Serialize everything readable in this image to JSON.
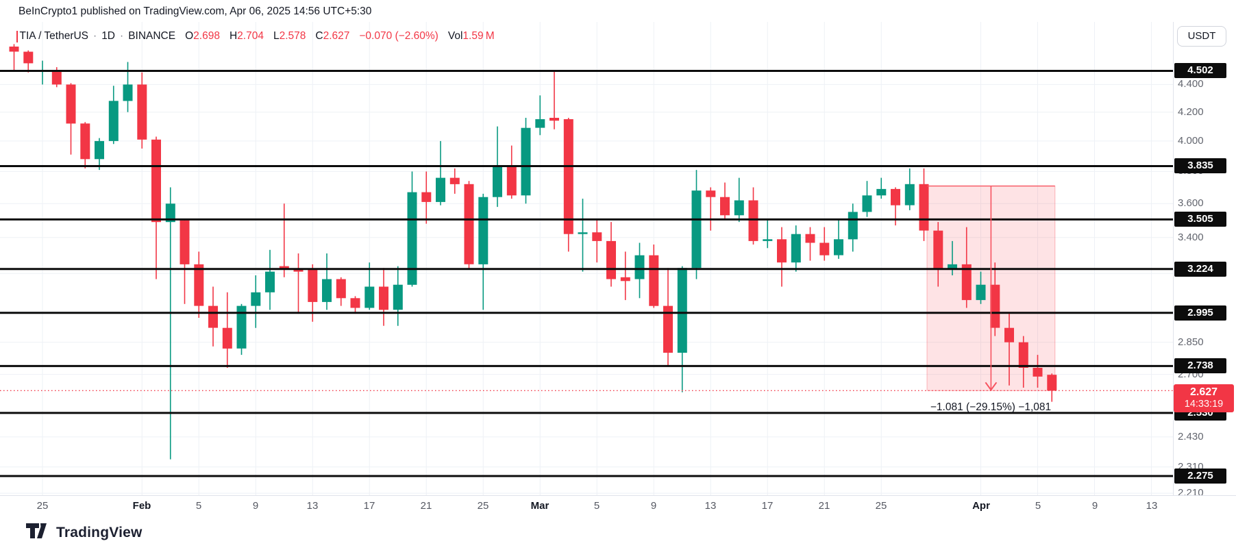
{
  "header": {
    "published_line": "BeInCrypto1 published on TradingView.com, Apr 06, 2025 14:56 UTC+5:30"
  },
  "legend": {
    "symbol": "TIA / TetherUS",
    "separator": "·",
    "interval": "1D",
    "exchange": "BINANCE",
    "o_label": "O",
    "o_value": "2.698",
    "h_label": "H",
    "h_value": "2.704",
    "l_label": "L",
    "l_value": "2.578",
    "c_label": "C",
    "c_value": "2.627",
    "change": "−0.070 (−2.60%)",
    "vol_label": "Vol",
    "vol_value": "1.59 M"
  },
  "price_axis": {
    "currency_button": "USDT",
    "levels": [
      {
        "price": 4.502,
        "label": "4.502"
      },
      {
        "price": 3.835,
        "label": "3.835"
      },
      {
        "price": 3.505,
        "label": "3.505"
      },
      {
        "price": 3.224,
        "label": "3.224"
      },
      {
        "price": 2.995,
        "label": "2.995"
      },
      {
        "price": 2.738,
        "label": "2.738"
      },
      {
        "price": 2.53,
        "label": "2.530"
      },
      {
        "price": 2.275,
        "label": "2.275"
      }
    ],
    "ticks": [
      {
        "price": 4.4,
        "label": "4.400"
      },
      {
        "price": 4.2,
        "label": "4.200"
      },
      {
        "price": 4.0,
        "label": "4.000"
      },
      {
        "price": 3.8,
        "label": "3.800"
      },
      {
        "price": 3.6,
        "label": "3.600"
      },
      {
        "price": 3.4,
        "label": "3.400"
      },
      {
        "price": 3.2,
        "label": "3.200"
      },
      {
        "price": 2.85,
        "label": "2.850"
      },
      {
        "price": 2.7,
        "label": "2.700"
      },
      {
        "price": 2.43,
        "label": "2.430"
      },
      {
        "price": 2.31,
        "label": "2.310"
      },
      {
        "price": 2.21,
        "label": "2.210"
      }
    ],
    "current": {
      "price": 2.627,
      "label": "2.627",
      "countdown": "14:33:19"
    }
  },
  "time_axis": {
    "labels": [
      {
        "text": "25",
        "day_index": 2,
        "month": false
      },
      {
        "text": "Feb",
        "day_index": 9,
        "month": true
      },
      {
        "text": "5",
        "day_index": 13,
        "month": false
      },
      {
        "text": "9",
        "day_index": 17,
        "month": false
      },
      {
        "text": "13",
        "day_index": 21,
        "month": false
      },
      {
        "text": "17",
        "day_index": 25,
        "month": false
      },
      {
        "text": "21",
        "day_index": 29,
        "month": false
      },
      {
        "text": "25",
        "day_index": 33,
        "month": false
      },
      {
        "text": "Mar",
        "day_index": 37,
        "month": true
      },
      {
        "text": "5",
        "day_index": 41,
        "month": false
      },
      {
        "text": "9",
        "day_index": 45,
        "month": false
      },
      {
        "text": "13",
        "day_index": 49,
        "month": false
      },
      {
        "text": "17",
        "day_index": 53,
        "month": false
      },
      {
        "text": "21",
        "day_index": 57,
        "month": false
      },
      {
        "text": "25",
        "day_index": 61,
        "month": false
      },
      {
        "text": "Apr",
        "day_index": 68,
        "month": true
      },
      {
        "text": "5",
        "day_index": 72,
        "month": false
      },
      {
        "text": "9",
        "day_index": 76,
        "month": false
      },
      {
        "text": "13",
        "day_index": 80,
        "month": false
      }
    ]
  },
  "measure_tool": {
    "label": "−1.081 (−29.15%) −1,081",
    "from_price": 3.708,
    "to_price": 2.627,
    "start_day_index": 64,
    "end_day_index": 73
  },
  "footer": {
    "brand": "TradingView"
  },
  "colors": {
    "up": "#089981",
    "down": "#f23645",
    "level_line": "#0c0c0c",
    "grid": "#eef1f6",
    "measure": "#f7525f",
    "current_line": "#f23645"
  },
  "chart_data": {
    "type": "candlestick",
    "title": "TIA / TetherUS · 1D · BINANCE",
    "ylabel": "Price (USDT)",
    "scale": "log",
    "ylim": [
      2.19,
      4.75
    ],
    "grid": true,
    "grid_prices": [
      4.4,
      4.2,
      4.0,
      3.8,
      3.6,
      3.4,
      3.2,
      3.0,
      2.85,
      2.7,
      2.43,
      2.31,
      2.21
    ],
    "horizontal_levels": [
      4.502,
      3.835,
      3.505,
      3.224,
      2.995,
      2.738,
      2.53,
      2.275
    ],
    "current_price": 2.627,
    "columns": [
      "date",
      "open",
      "high",
      "low",
      "close"
    ],
    "candles": [
      [
        "Jan 23",
        4.69,
        4.71,
        4.5,
        4.65
      ],
      [
        "Jan 24",
        4.65,
        4.66,
        4.49,
        4.56
      ],
      [
        "Jan 25",
        4.5,
        4.58,
        4.4,
        4.51
      ],
      [
        "Jan 26",
        4.51,
        4.53,
        4.38,
        4.4
      ],
      [
        "Jan 27",
        4.4,
        4.41,
        3.91,
        4.12
      ],
      [
        "Jan 28",
        4.12,
        4.13,
        3.82,
        3.88
      ],
      [
        "Jan 29",
        3.88,
        4.02,
        3.81,
        4.0
      ],
      [
        "Jan 30",
        4.0,
        4.39,
        3.98,
        4.28
      ],
      [
        "Jan 31",
        4.28,
        4.57,
        4.2,
        4.4
      ],
      [
        "Feb 1",
        4.4,
        4.49,
        3.95,
        4.01
      ],
      [
        "Feb 2",
        4.01,
        4.03,
        3.17,
        3.49
      ],
      [
        "Feb 3",
        3.49,
        3.7,
        2.34,
        3.6
      ],
      [
        "Feb 4",
        3.5,
        3.51,
        3.04,
        3.25
      ],
      [
        "Feb 5",
        3.25,
        3.32,
        2.97,
        3.03
      ],
      [
        "Feb 6",
        3.03,
        3.13,
        2.83,
        2.92
      ],
      [
        "Feb 7",
        2.92,
        3.1,
        2.73,
        2.82
      ],
      [
        "Feb 8",
        2.82,
        3.04,
        2.79,
        3.03
      ],
      [
        "Feb 9",
        3.03,
        3.19,
        2.92,
        3.1
      ],
      [
        "Feb 10",
        3.1,
        3.33,
        3.01,
        3.21
      ],
      [
        "Feb 11",
        3.24,
        3.6,
        3.18,
        3.22
      ],
      [
        "Feb 12",
        3.22,
        3.31,
        2.99,
        3.21
      ],
      [
        "Feb 13",
        3.22,
        3.25,
        2.95,
        3.05
      ],
      [
        "Feb 14",
        3.05,
        3.31,
        3.01,
        3.17
      ],
      [
        "Feb 15",
        3.17,
        3.18,
        3.03,
        3.07
      ],
      [
        "Feb 16",
        3.07,
        3.08,
        2.99,
        3.02
      ],
      [
        "Feb 17",
        3.02,
        3.26,
        3.01,
        3.13
      ],
      [
        "Feb 18",
        3.13,
        3.23,
        2.93,
        3.01
      ],
      [
        "Feb 19",
        3.01,
        3.24,
        2.93,
        3.14
      ],
      [
        "Feb 20",
        3.14,
        3.8,
        3.13,
        3.67
      ],
      [
        "Feb 21",
        3.67,
        3.8,
        3.48,
        3.61
      ],
      [
        "Feb 22",
        3.61,
        4.0,
        3.59,
        3.76
      ],
      [
        "Feb 23",
        3.76,
        3.82,
        3.66,
        3.72
      ],
      [
        "Feb 24",
        3.72,
        3.74,
        3.22,
        3.25
      ],
      [
        "Feb 25",
        3.25,
        3.66,
        3.01,
        3.64
      ],
      [
        "Feb 26",
        3.64,
        4.1,
        3.58,
        3.83
      ],
      [
        "Feb 27",
        3.83,
        3.97,
        3.63,
        3.65
      ],
      [
        "Feb 28",
        3.65,
        4.16,
        3.6,
        4.09
      ],
      [
        "Mar 1",
        4.09,
        4.32,
        4.04,
        4.15
      ],
      [
        "Mar 2",
        4.16,
        4.5,
        4.08,
        4.14
      ],
      [
        "Mar 3",
        4.15,
        4.16,
        3.32,
        3.42
      ],
      [
        "Mar 4",
        3.42,
        3.63,
        3.21,
        3.43
      ],
      [
        "Mar 5",
        3.43,
        3.5,
        3.26,
        3.38
      ],
      [
        "Mar 6",
        3.38,
        3.49,
        3.13,
        3.17
      ],
      [
        "Mar 7",
        3.18,
        3.32,
        3.06,
        3.16
      ],
      [
        "Mar 8",
        3.17,
        3.37,
        3.07,
        3.3
      ],
      [
        "Mar 9",
        3.3,
        3.36,
        3.02,
        3.03
      ],
      [
        "Mar 10",
        3.03,
        3.23,
        2.74,
        2.8
      ],
      [
        "Mar 11",
        2.8,
        3.24,
        2.62,
        3.23
      ],
      [
        "Mar 12",
        3.23,
        3.81,
        3.17,
        3.68
      ],
      [
        "Mar 13",
        3.68,
        3.7,
        3.44,
        3.64
      ],
      [
        "Mar 14",
        3.64,
        3.73,
        3.51,
        3.53
      ],
      [
        "Mar 15",
        3.53,
        3.76,
        3.49,
        3.62
      ],
      [
        "Mar 16",
        3.62,
        3.7,
        3.36,
        3.38
      ],
      [
        "Mar 17",
        3.38,
        3.5,
        3.34,
        3.39
      ],
      [
        "Mar 18",
        3.39,
        3.46,
        3.13,
        3.26
      ],
      [
        "Mar 19",
        3.26,
        3.47,
        3.21,
        3.42
      ],
      [
        "Mar 20",
        3.42,
        3.46,
        3.27,
        3.37
      ],
      [
        "Mar 21",
        3.37,
        3.46,
        3.27,
        3.3
      ],
      [
        "Mar 22",
        3.3,
        3.5,
        3.28,
        3.39
      ],
      [
        "Mar 23",
        3.39,
        3.6,
        3.32,
        3.55
      ],
      [
        "Mar 24",
        3.55,
        3.74,
        3.52,
        3.65
      ],
      [
        "Mar 25",
        3.65,
        3.76,
        3.63,
        3.69
      ],
      [
        "Mar 26",
        3.69,
        3.7,
        3.47,
        3.59
      ],
      [
        "Mar 27",
        3.59,
        3.82,
        3.56,
        3.72
      ],
      [
        "Mar 28",
        3.72,
        3.82,
        3.38,
        3.44
      ],
      [
        "Mar 29",
        3.44,
        3.49,
        3.13,
        3.22
      ],
      [
        "Mar 30",
        3.22,
        3.38,
        3.19,
        3.25
      ],
      [
        "Mar 31",
        3.25,
        3.46,
        3.02,
        3.06
      ],
      [
        "Apr 1",
        3.06,
        3.21,
        3.04,
        3.14
      ],
      [
        "Apr 2",
        3.14,
        3.26,
        2.88,
        2.92
      ],
      [
        "Apr 3",
        2.92,
        2.99,
        2.65,
        2.85
      ],
      [
        "Apr 4",
        2.85,
        2.88,
        2.64,
        2.73
      ],
      [
        "Apr 5",
        2.73,
        2.79,
        2.64,
        2.69
      ],
      [
        "Apr 6",
        2.698,
        2.704,
        2.578,
        2.627
      ]
    ]
  }
}
